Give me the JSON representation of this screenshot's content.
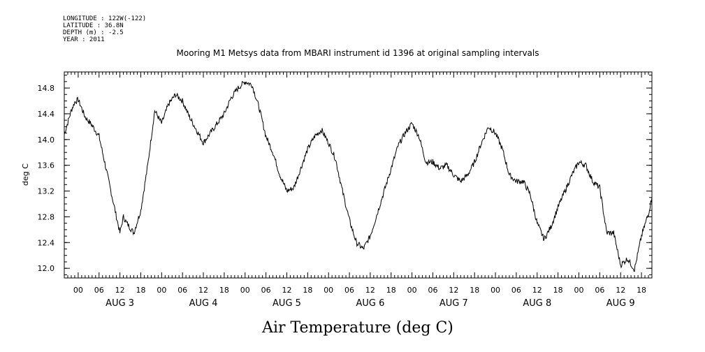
{
  "metadata": {
    "longitude": "LONGITUDE : 122W(-122)",
    "latitude": "LATITUDE : 36.8N",
    "depth": "DEPTH (m) : -2.5",
    "year": "YEAR : 2011"
  },
  "chart_data": {
    "type": "line",
    "title": "Mooring M1 Metsys data from MBARI instrument id 1396 at original sampling intervals",
    "xlabel": "Air Temperature (deg C)",
    "ylabel": "deg C",
    "ylim": [
      11.85,
      15.05
    ],
    "yticks": [
      "12.0",
      "12.4",
      "12.8",
      "13.2",
      "13.6",
      "14.0",
      "14.4",
      "14.8"
    ],
    "xlim": [
      "2011-08-02T20:00",
      "2011-08-09T21:00"
    ],
    "hour_ticks": [
      "00",
      "06",
      "12",
      "18"
    ],
    "day_labels": [
      "AUG 3",
      "AUG 4",
      "AUG 5",
      "AUG 6",
      "AUG 7",
      "AUG 8",
      "AUG 9"
    ],
    "grid": false,
    "series": [
      {
        "color": "#000000",
        "x": [
          "2011-08-02T20:00",
          "2011-08-02T22:00",
          "2011-08-02T23:00",
          "2011-08-03T00:00",
          "2011-08-03T02:00",
          "2011-08-03T04:00",
          "2011-08-03T06:00",
          "2011-08-03T08:00",
          "2011-08-03T10:00",
          "2011-08-03T12:00",
          "2011-08-03T13:00",
          "2011-08-03T14:00",
          "2011-08-03T16:00",
          "2011-08-03T18:00",
          "2011-08-03T20:00",
          "2011-08-03T22:00",
          "2011-08-04T00:00",
          "2011-08-04T02:00",
          "2011-08-04T04:00",
          "2011-08-04T06:00",
          "2011-08-04T08:00",
          "2011-08-04T10:00",
          "2011-08-04T12:00",
          "2011-08-04T14:00",
          "2011-08-04T16:00",
          "2011-08-04T18:00",
          "2011-08-04T20:00",
          "2011-08-04T22:00",
          "2011-08-05T00:00",
          "2011-08-05T02:00",
          "2011-08-05T04:00",
          "2011-08-05T06:00",
          "2011-08-05T08:00",
          "2011-08-05T10:00",
          "2011-08-05T12:00",
          "2011-08-05T14:00",
          "2011-08-05T16:00",
          "2011-08-05T18:00",
          "2011-08-05T20:00",
          "2011-08-05T22:00",
          "2011-08-06T00:00",
          "2011-08-06T02:00",
          "2011-08-06T04:00",
          "2011-08-06T06:00",
          "2011-08-06T08:00",
          "2011-08-06T10:00",
          "2011-08-06T12:00",
          "2011-08-06T14:00",
          "2011-08-06T16:00",
          "2011-08-06T18:00",
          "2011-08-06T20:00",
          "2011-08-06T22:00",
          "2011-08-07T00:00",
          "2011-08-07T02:00",
          "2011-08-07T04:00",
          "2011-08-07T06:00",
          "2011-08-07T08:00",
          "2011-08-07T10:00",
          "2011-08-07T12:00",
          "2011-08-07T14:00",
          "2011-08-07T16:00",
          "2011-08-07T18:00",
          "2011-08-07T20:00",
          "2011-08-07T22:00",
          "2011-08-08T00:00",
          "2011-08-08T02:00",
          "2011-08-08T04:00",
          "2011-08-08T06:00",
          "2011-08-08T08:00",
          "2011-08-08T10:00",
          "2011-08-08T12:00",
          "2011-08-08T14:00",
          "2011-08-08T16:00",
          "2011-08-08T18:00",
          "2011-08-08T20:00",
          "2011-08-08T22:00",
          "2011-08-09T00:00",
          "2011-08-09T02:00",
          "2011-08-09T04:00",
          "2011-08-09T06:00",
          "2011-08-09T08:00",
          "2011-08-09T10:00",
          "2011-08-09T12:00",
          "2011-08-09T14:00",
          "2011-08-09T16:00",
          "2011-08-09T18:00",
          "2011-08-09T20:00",
          "2011-08-09T21:00"
        ],
        "values": [
          14.08,
          14.45,
          14.58,
          14.62,
          14.35,
          14.22,
          14.05,
          13.55,
          13.05,
          12.55,
          12.8,
          12.7,
          12.55,
          12.9,
          13.6,
          14.45,
          14.25,
          14.55,
          14.7,
          14.6,
          14.35,
          14.15,
          13.95,
          14.1,
          14.25,
          14.4,
          14.65,
          14.8,
          14.9,
          14.85,
          14.5,
          14.05,
          13.8,
          13.45,
          13.2,
          13.25,
          13.55,
          13.85,
          14.05,
          14.15,
          13.95,
          13.7,
          13.2,
          12.75,
          12.4,
          12.3,
          12.5,
          12.85,
          13.2,
          13.55,
          13.9,
          14.1,
          14.25,
          14.05,
          13.65,
          13.65,
          13.55,
          13.6,
          13.45,
          13.35,
          13.45,
          13.65,
          13.95,
          14.2,
          14.1,
          13.85,
          13.45,
          13.35,
          13.35,
          13.15,
          12.7,
          12.45,
          12.65,
          12.95,
          13.2,
          13.45,
          13.65,
          13.6,
          13.35,
          13.25,
          12.55,
          12.55,
          12.05,
          12.15,
          11.98,
          12.5,
          12.85,
          13.1
        ]
      }
    ]
  }
}
